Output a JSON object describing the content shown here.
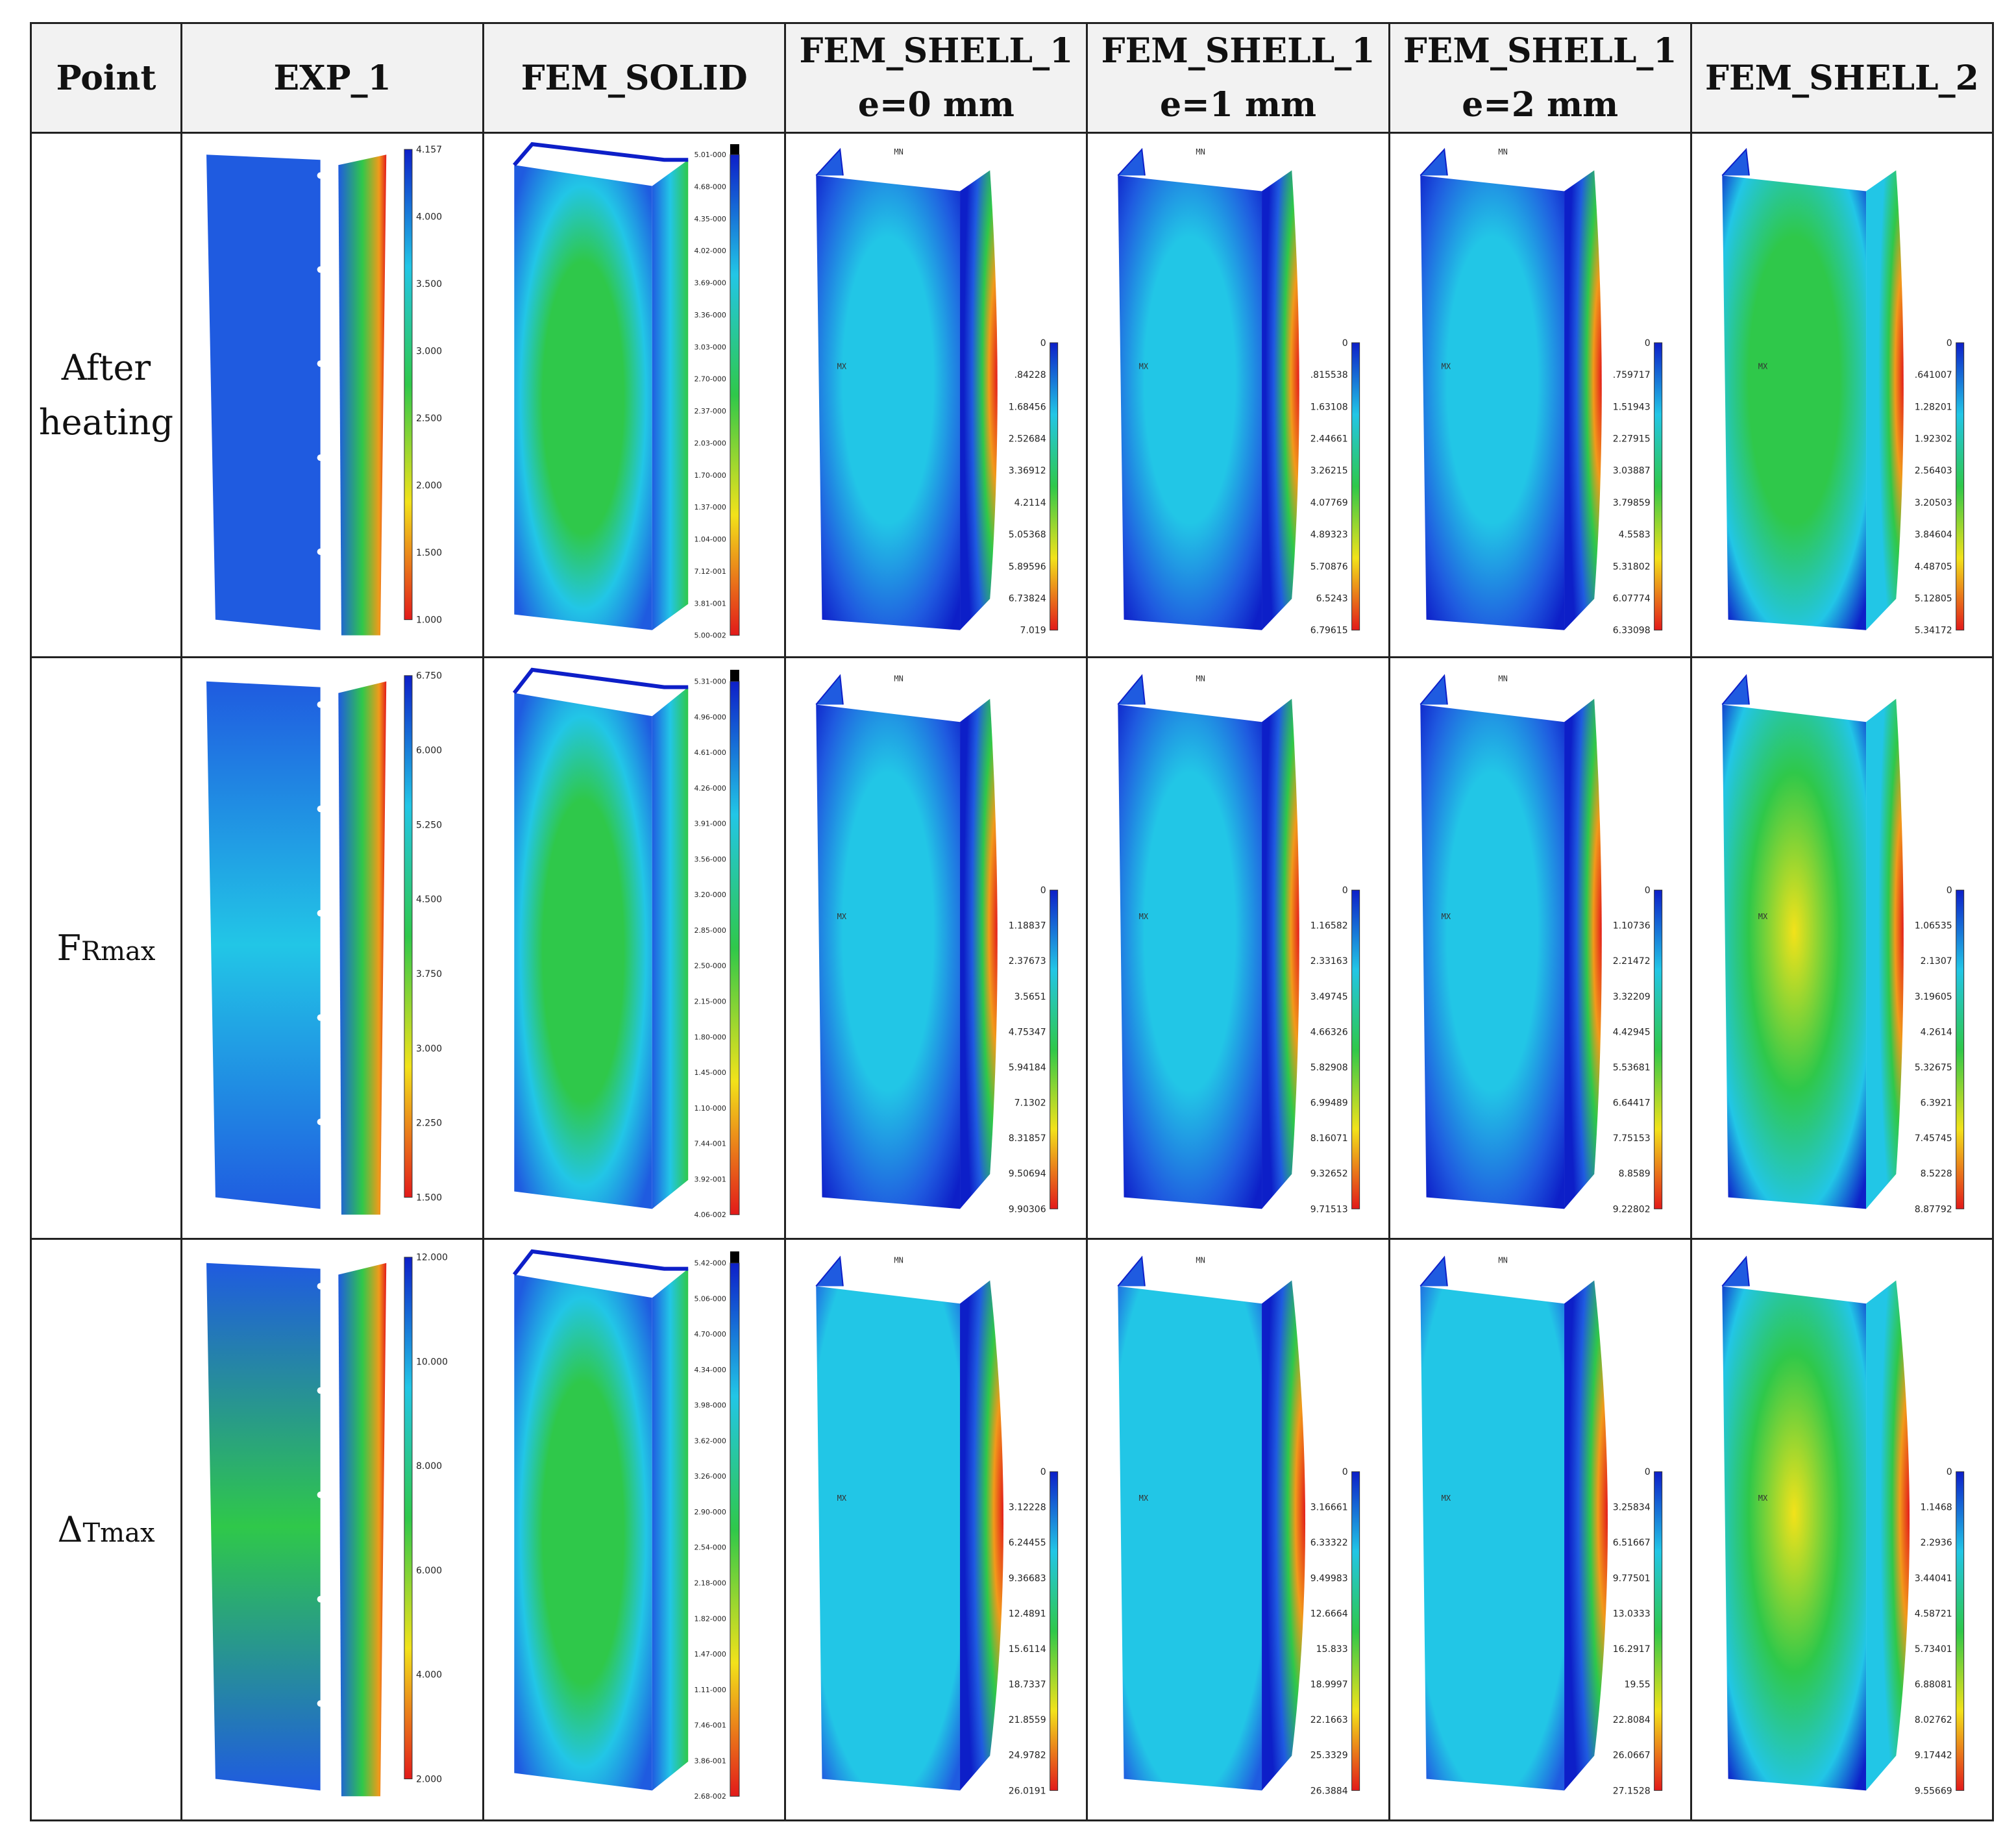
{
  "headers": {
    "point": "Point",
    "exp": "EXP_1",
    "solid": "FEM_SOLID",
    "shell0": {
      "l1": "FEM_SHELL_1",
      "l2": "e=0 mm"
    },
    "shell1": {
      "l1": "FEM_SHELL_1",
      "l2": "e=1 mm"
    },
    "shell2": {
      "l1": "FEM_SHELL_1",
      "l2": "e=2 mm"
    },
    "shell_b": "FEM_SHELL_2"
  },
  "rows": [
    {
      "label_line1": "After",
      "label_line2": "heating",
      "exp_scale": [
        "4.157",
        "4.000",
        "3.500",
        "3.000",
        "2.500",
        "2.000",
        "1.500",
        "1.000"
      ],
      "solid_scale": [
        "5.01-000",
        "4.68-000",
        "4.35-000",
        "4.02-000",
        "3.69-000",
        "3.36-000",
        "3.03-000",
        "2.70-000",
        "2.37-000",
        "2.03-000",
        "1.70-000",
        "1.37-000",
        "1.04-000",
        "7.12-001",
        "3.81-001",
        "5.00-002"
      ],
      "shell0_scale": [
        "0",
        ".84228",
        "1.68456",
        "2.52684",
        "3.36912",
        "4.2114",
        "5.05368",
        "5.89596",
        "6.73824",
        "7.019"
      ],
      "shell1_scale": [
        "0",
        ".815538",
        "1.63108",
        "2.44661",
        "3.26215",
        "4.07769",
        "4.89323",
        "5.70876",
        "6.5243",
        "6.79615"
      ],
      "shell2_scale": [
        "0",
        ".759717",
        "1.51943",
        "2.27915",
        "3.03887",
        "3.79859",
        "4.5583",
        "5.31802",
        "6.07774",
        "6.33098"
      ],
      "shellb_scale": [
        "0",
        ".641007",
        "1.28201",
        "1.92302",
        "2.56403",
        "3.20503",
        "3.84604",
        "4.48705",
        "5.12805",
        "5.34172"
      ]
    },
    {
      "label_main": "F",
      "label_sub": "Rmax",
      "exp_scale": [
        "6.750",
        "6.000",
        "5.250",
        "4.500",
        "3.750",
        "3.000",
        "2.250",
        "1.500"
      ],
      "solid_scale": [
        "5.31-000",
        "4.96-000",
        "4.61-000",
        "4.26-000",
        "3.91-000",
        "3.56-000",
        "3.20-000",
        "2.85-000",
        "2.50-000",
        "2.15-000",
        "1.80-000",
        "1.45-000",
        "1.10-000",
        "7.44-001",
        "3.92-001",
        "4.06-002"
      ],
      "shell0_scale": [
        "0",
        "1.18837",
        "2.37673",
        "3.5651",
        "4.75347",
        "5.94184",
        "7.1302",
        "8.31857",
        "9.50694",
        "9.90306"
      ],
      "shell1_scale": [
        "0",
        "1.16582",
        "2.33163",
        "3.49745",
        "4.66326",
        "5.82908",
        "6.99489",
        "8.16071",
        "9.32652",
        "9.71513"
      ],
      "shell2_scale": [
        "0",
        "1.10736",
        "2.21472",
        "3.32209",
        "4.42945",
        "5.53681",
        "6.64417",
        "7.75153",
        "8.8589",
        "9.22802"
      ],
      "shellb_scale": [
        "0",
        "1.06535",
        "2.1307",
        "3.19605",
        "4.2614",
        "5.32675",
        "6.3921",
        "7.45745",
        "8.5228",
        "8.87792"
      ]
    },
    {
      "label_main": "Δ",
      "label_sub": "Tmax",
      "exp_scale": [
        "12.000",
        "10.000",
        "8.000",
        "6.000",
        "4.000",
        "2.000"
      ],
      "solid_scale": [
        "5.42-000",
        "5.06-000",
        "4.70-000",
        "4.34-000",
        "3.98-000",
        "3.62-000",
        "3.26-000",
        "2.90-000",
        "2.54-000",
        "2.18-000",
        "1.82-000",
        "1.47-000",
        "1.11-000",
        "7.46-001",
        "3.86-001",
        "2.68-002"
      ],
      "shell0_scale": [
        "0",
        "3.12228",
        "6.24455",
        "9.36683",
        "12.4891",
        "15.6114",
        "18.7337",
        "21.8559",
        "24.9782",
        "26.0191"
      ],
      "shell1_scale": [
        "0",
        "3.16661",
        "6.33322",
        "9.49983",
        "12.6664",
        "15.833",
        "18.9997",
        "22.1663",
        "25.3329",
        "26.3884"
      ],
      "shell2_scale": [
        "0",
        "3.25834",
        "6.51667",
        "9.77501",
        "13.0333",
        "16.2917",
        "19.55",
        "22.8084",
        "26.0667",
        "27.1528"
      ],
      "shellb_scale": [
        "0",
        "1.1468",
        "2.2936",
        "3.44041",
        "4.58721",
        "5.73401",
        "6.88081",
        "8.02762",
        "9.17442",
        "9.55669"
      ]
    }
  ],
  "model_labels": {
    "mn": "MN",
    "mx": "MX",
    "star": "*"
  },
  "colors": {
    "deep_blue": "#0d1fc8",
    "blue": "#1f5be0",
    "cyan": "#22c6e6",
    "green": "#2fc84a",
    "yellow": "#f2e21a",
    "orange": "#f29a1a",
    "red": "#e21a1a"
  }
}
